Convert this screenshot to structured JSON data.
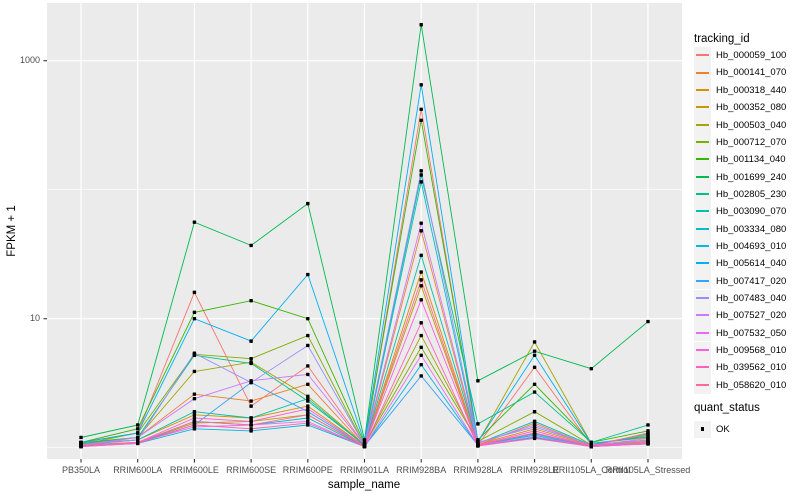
{
  "style": {
    "panel_bg": "#EBEBEB",
    "gridline": "#FFFFFF",
    "axis_text": "#4D4D4D",
    "tick_mark": "#333333",
    "text": "#000000",
    "legend_key_bg": "#F2F2F2",
    "outer_bg": "#FFFFFF",
    "point_color": "#000000"
  },
  "chart_data": {
    "type": "line",
    "title": "",
    "xlabel": "sample_name",
    "ylabel": "FPKM + 1",
    "y_scale": "log10",
    "ylim": [
      0.8,
      2800
    ],
    "y_ticks": [
      {
        "label": "1000",
        "value": 1000
      },
      {
        "label": "10",
        "value": 10
      }
    ],
    "y_minor_gridlines": [
      1,
      100
    ],
    "grid": "on",
    "legend_position": "right",
    "legend_title": "tracking_id",
    "quant_legend": {
      "title": "quant_status",
      "items": [
        "OK"
      ]
    },
    "point_shape": "filled-square",
    "categories": [
      "PB350LA",
      "RRIM600LA",
      "RRIM600LE",
      "RRIM600SE",
      "RRIM600PE",
      "RRIM901LA",
      "RRIM928BA",
      "RRIM928LA",
      "RRIM928LE",
      "RRII105LA_Control",
      "RRII105LA_Stressed"
    ],
    "series": [
      {
        "name": "Hb_000059_100",
        "color": "#F8766D",
        "values": [
          1.1,
          1.3,
          16,
          2.1,
          4.3,
          1.05,
          420,
          1.05,
          4.2,
          1.05,
          1.15
        ]
      },
      {
        "name": "Hb_000141_070",
        "color": "#EA8331",
        "values": [
          1.05,
          1.2,
          2.6,
          2.3,
          3.1,
          1.03,
          48,
          1.05,
          1.55,
          1.03,
          1.1
        ]
      },
      {
        "name": "Hb_000318_440",
        "color": "#D89000",
        "values": [
          1.08,
          1.15,
          1.8,
          1.7,
          2.1,
          1.03,
          23,
          1.06,
          1.4,
          1.04,
          1.12
        ]
      },
      {
        "name": "Hb_000352_080",
        "color": "#C09B00",
        "values": [
          1.05,
          1.1,
          1.55,
          1.6,
          1.8,
          1.02,
          18,
          1.04,
          1.3,
          1.02,
          1.08
        ]
      },
      {
        "name": "Hb_000503_040",
        "color": "#A3A500",
        "values": [
          1.1,
          1.2,
          3.9,
          4.6,
          2.5,
          1.05,
          7.4,
          1.1,
          6.6,
          1.08,
          1.2
        ]
      },
      {
        "name": "Hb_000712_070",
        "color": "#7CAE00",
        "values": [
          1.06,
          1.3,
          5.3,
          4.9,
          7.4,
          1.05,
          6.0,
          1.12,
          1.9,
          1.05,
          1.25
        ]
      },
      {
        "name": "Hb_001134_040",
        "color": "#39B600",
        "values": [
          1.1,
          1.4,
          11.2,
          13.8,
          10.0,
          1.08,
          345,
          1.15,
          3.1,
          1.1,
          1.35
        ]
      },
      {
        "name": "Hb_001699_240",
        "color": "#00BB4E",
        "values": [
          1.2,
          1.5,
          56,
          37,
          78,
          1.15,
          1900,
          3.3,
          5.6,
          4.1,
          9.5
        ]
      },
      {
        "name": "Hb_002805_230",
        "color": "#00C087",
        "values": [
          1.08,
          1.2,
          5.2,
          4.5,
          2.3,
          1.05,
          130,
          1.53,
          2.7,
          1.1,
          1.5
        ]
      },
      {
        "name": "Hb_003090_070",
        "color": "#00C0AF",
        "values": [
          1.05,
          1.15,
          1.9,
          1.7,
          2.4,
          1.04,
          31,
          1.08,
          1.6,
          1.05,
          1.28
        ]
      },
      {
        "name": "Hb_003334_080",
        "color": "#00BFC4",
        "values": [
          1.04,
          1.1,
          1.6,
          1.5,
          1.7,
          1.02,
          115,
          1.05,
          1.25,
          1.02,
          1.1
        ]
      },
      {
        "name": "Hb_004693_010",
        "color": "#00BAE0",
        "values": [
          1.02,
          1.08,
          1.4,
          1.35,
          1.5,
          1.02,
          4.4,
          1.04,
          1.2,
          1.02,
          1.07
        ]
      },
      {
        "name": "Hb_005614_040",
        "color": "#00B0F6",
        "values": [
          1.1,
          1.3,
          10.0,
          6.7,
          22,
          1.1,
          650,
          1.12,
          5.2,
          1.08,
          1.22
        ]
      },
      {
        "name": "Hb_007417_020",
        "color": "#35A2FF",
        "values": [
          1.04,
          1.1,
          1.5,
          3.2,
          1.9,
          1.03,
          3.6,
          1.05,
          1.28,
          1.03,
          1.09
        ]
      },
      {
        "name": "Hb_007483_040",
        "color": "#9590FF",
        "values": [
          1.06,
          1.15,
          5.4,
          3.2,
          6.2,
          1.05,
          140,
          1.1,
          1.45,
          1.05,
          1.14
        ]
      },
      {
        "name": "Hb_007527_020",
        "color": "#C77CFF",
        "values": [
          1.05,
          1.2,
          2.4,
          3.3,
          3.7,
          1.05,
          55,
          1.08,
          1.5,
          1.04,
          1.18
        ]
      },
      {
        "name": "Hb_007532_050",
        "color": "#E76BF3",
        "values": [
          1.02,
          1.1,
          1.45,
          1.5,
          1.6,
          1.02,
          5.2,
          1.04,
          1.22,
          1.02,
          1.08
        ]
      },
      {
        "name": "Hb_009568_010",
        "color": "#FA62DB",
        "values": [
          1.05,
          1.1,
          1.7,
          1.6,
          2.0,
          1.03,
          14,
          1.05,
          1.35,
          1.03,
          1.1
        ]
      },
      {
        "name": "Hb_039562_010",
        "color": "#FF62BC",
        "values": [
          1.02,
          1.08,
          1.5,
          1.4,
          1.55,
          1.02,
          9.3,
          1.03,
          1.18,
          1.02,
          1.07
        ]
      },
      {
        "name": "Hb_058620_010",
        "color": "#FF6A98",
        "values": [
          1.05,
          1.1,
          1.6,
          1.5,
          1.8,
          1.03,
          20,
          1.05,
          1.3,
          1.03,
          1.3
        ]
      }
    ]
  }
}
